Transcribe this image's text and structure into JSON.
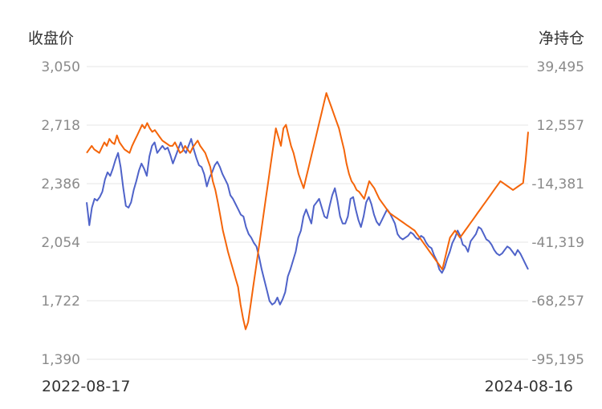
{
  "chart_data": {
    "type": "line",
    "left_axis_title": "收盘价",
    "right_axis_title": "净持仓",
    "left_ticks": [
      "3,050",
      "2,718",
      "2,386",
      "2,054",
      "1,722",
      "1,390"
    ],
    "right_ticks": [
      "39,495",
      "12,557",
      "-14,381",
      "-41,319",
      "-68,257",
      "-95,195"
    ],
    "x_start_label": "2022-08-17",
    "x_end_label": "2024-08-16",
    "left_ylim": [
      1390,
      3050
    ],
    "right_ylim": [
      -95195,
      39495
    ],
    "grid": true,
    "colors": {
      "close": "#4f63c9",
      "net": "#f4650a"
    },
    "series": [
      {
        "key": "close",
        "axis": "left",
        "values": [
          2280,
          2150,
          2250,
          2300,
          2290,
          2310,
          2340,
          2410,
          2450,
          2430,
          2470,
          2520,
          2560,
          2480,
          2360,
          2260,
          2250,
          2280,
          2350,
          2400,
          2460,
          2500,
          2470,
          2430,
          2540,
          2600,
          2620,
          2560,
          2580,
          2600,
          2580,
          2590,
          2550,
          2500,
          2540,
          2580,
          2620,
          2580,
          2560,
          2600,
          2640,
          2580,
          2530,
          2490,
          2480,
          2440,
          2370,
          2420,
          2450,
          2490,
          2510,
          2480,
          2440,
          2410,
          2380,
          2320,
          2300,
          2270,
          2240,
          2210,
          2200,
          2140,
          2100,
          2080,
          2050,
          2030,
          1970,
          1900,
          1840,
          1780,
          1720,
          1700,
          1710,
          1740,
          1700,
          1730,
          1770,
          1860,
          1900,
          1950,
          2000,
          2080,
          2120,
          2200,
          2240,
          2200,
          2160,
          2260,
          2280,
          2300,
          2250,
          2200,
          2190,
          2260,
          2320,
          2360,
          2290,
          2200,
          2160,
          2160,
          2200,
          2300,
          2310,
          2240,
          2180,
          2140,
          2200,
          2280,
          2310,
          2270,
          2210,
          2170,
          2150,
          2180,
          2210,
          2240,
          2220,
          2190,
          2160,
          2100,
          2080,
          2070,
          2080,
          2090,
          2110,
          2100,
          2080,
          2070,
          2090,
          2080,
          2050,
          2030,
          2020,
          1980,
          1950,
          1900,
          1880,
          1910,
          1960,
          2000,
          2050,
          2080,
          2120,
          2090,
          2040,
          2030,
          2000,
          2060,
          2080,
          2100,
          2140,
          2130,
          2100,
          2070,
          2060,
          2040,
          2010,
          1990,
          1980,
          1990,
          2010,
          2030,
          2020,
          2000,
          1980,
          2010,
          1990,
          1960,
          1930,
          1900
        ]
      },
      {
        "key": "net",
        "axis": "left",
        "values": [
          2560,
          2580,
          2600,
          2580,
          2570,
          2560,
          2590,
          2620,
          2600,
          2640,
          2620,
          2610,
          2660,
          2620,
          2600,
          2580,
          2570,
          2560,
          2600,
          2630,
          2660,
          2690,
          2720,
          2700,
          2730,
          2700,
          2680,
          2690,
          2670,
          2650,
          2630,
          2620,
          2610,
          2600,
          2600,
          2620,
          2590,
          2560,
          2570,
          2600,
          2580,
          2560,
          2590,
          2610,
          2630,
          2600,
          2580,
          2560,
          2520,
          2480,
          2400,
          2350,
          2280,
          2200,
          2120,
          2060,
          2000,
          1950,
          1900,
          1850,
          1800,
          1700,
          1620,
          1560,
          1600,
          1700,
          1800,
          1900,
          2000,
          2100,
          2200,
          2300,
          2400,
          2500,
          2600,
          2700,
          2650,
          2600,
          2700,
          2720,
          2660,
          2600,
          2560,
          2500,
          2440,
          2400,
          2360,
          2420,
          2480,
          2540,
          2600,
          2660,
          2720,
          2780,
          2840,
          2900,
          2860,
          2820,
          2780,
          2740,
          2700,
          2640,
          2580,
          2500,
          2440,
          2400,
          2380,
          2350,
          2340,
          2320,
          2300,
          2350,
          2400,
          2380,
          2360,
          2330,
          2300,
          2280,
          2260,
          2240,
          2220,
          2210,
          2200,
          2190,
          2180,
          2170,
          2160,
          2150,
          2140,
          2130,
          2120,
          2100,
          2080,
          2060,
          2040,
          2020,
          2000,
          1980,
          1960,
          1940,
          1920,
          1900,
          1960,
          2020,
          2080,
          2100,
          2120,
          2100,
          2080,
          2100,
          2120,
          2140,
          2160,
          2180,
          2200,
          2220,
          2240,
          2260,
          2280,
          2300,
          2320,
          2340,
          2360,
          2380,
          2400,
          2390,
          2380,
          2370,
          2360,
          2350,
          2360,
          2370,
          2380,
          2390,
          2520,
          2680
        ]
      }
    ]
  }
}
